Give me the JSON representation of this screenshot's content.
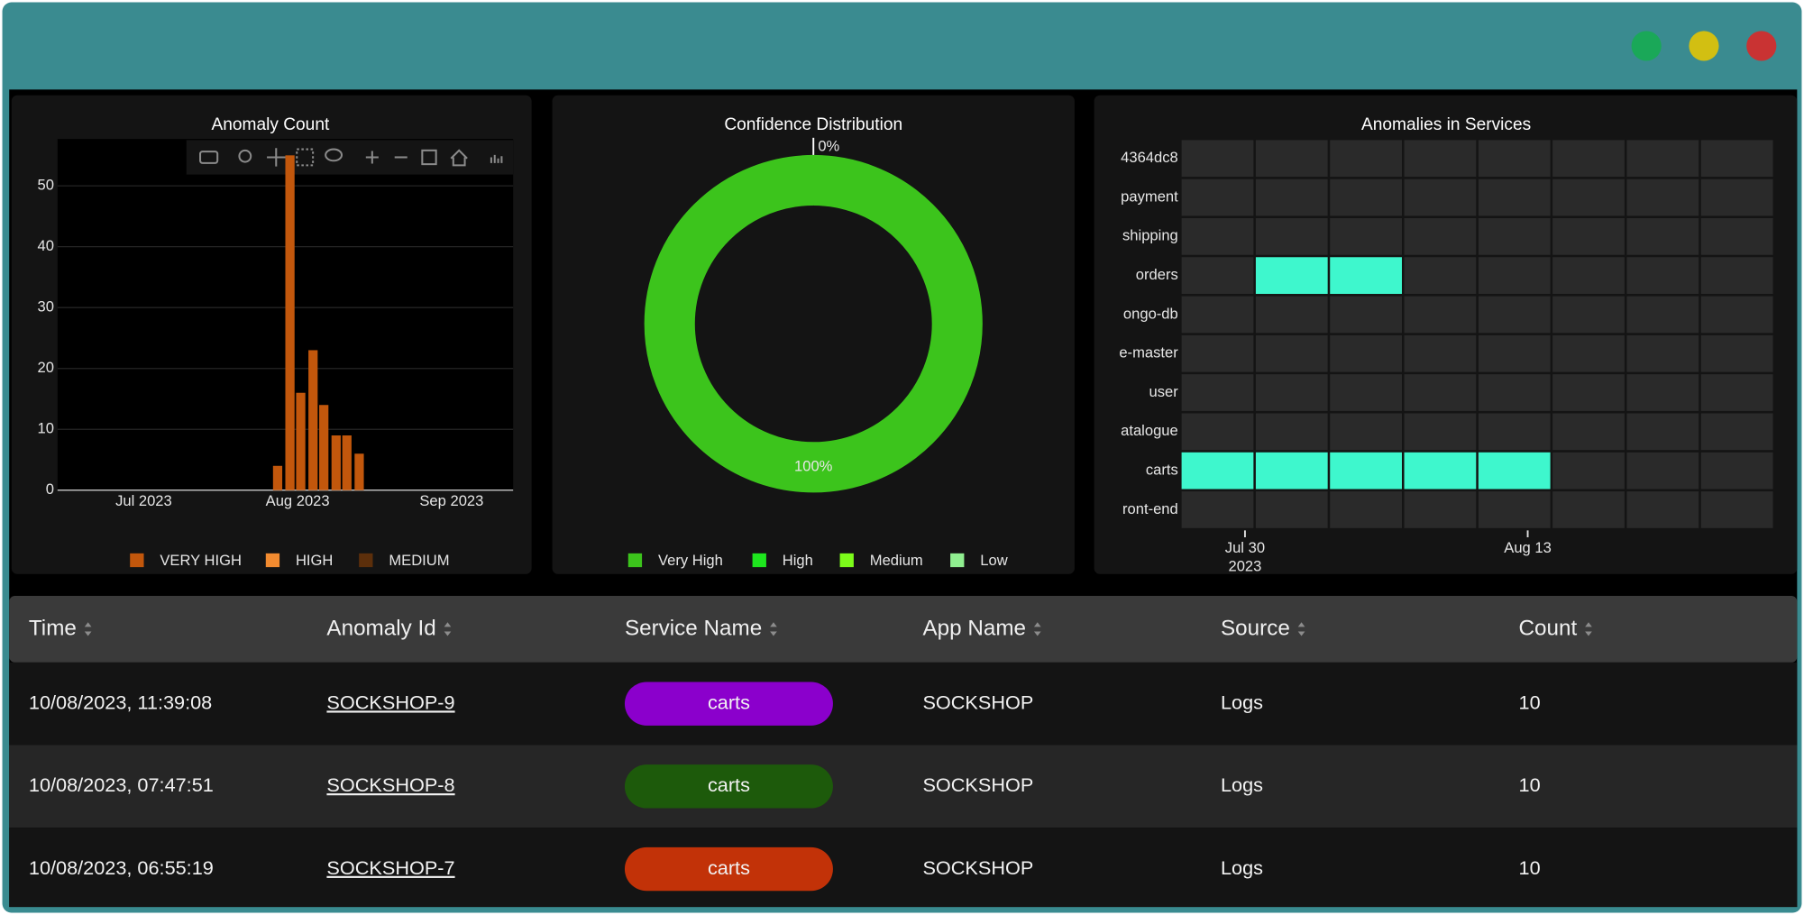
{
  "chart_data": [
    {
      "type": "bar",
      "title": "Anomaly Count",
      "x": [
        0.87,
        0.95,
        1.02,
        1.1,
        1.17,
        1.25,
        1.32,
        1.4
      ],
      "bar_width": 0.06,
      "series": [
        {
          "name": "VERY HIGH",
          "color": "#c2570c",
          "values": [
            4,
            55,
            16,
            23,
            14,
            9,
            9,
            6
          ]
        },
        {
          "name": "HIGH",
          "color": "#f28b30",
          "values": [
            null,
            null,
            null,
            null,
            null,
            null,
            null,
            null
          ]
        },
        {
          "name": "MEDIUM",
          "color": "#5c2f0b",
          "values": [
            null,
            null,
            null,
            null,
            null,
            null,
            null,
            null
          ]
        }
      ],
      "xlim": [
        -0.56,
        2.4
      ],
      "xticks": [
        {
          "value": 0,
          "label": "Jul 2023"
        },
        {
          "value": 1,
          "label": "Aug 2023"
        },
        {
          "value": 2,
          "label": "Sep 2023"
        }
      ],
      "ylim": [
        0,
        57.7
      ],
      "yticks": [
        0,
        10,
        20,
        30,
        40,
        50
      ],
      "grid": true,
      "legend": "bottom"
    },
    {
      "type": "pie",
      "title": "Confidence Distribution",
      "hole": true,
      "categories": [
        "Very High",
        "High",
        "Medium",
        "Low"
      ],
      "values": [
        100,
        0,
        0,
        0
      ],
      "value_labels": [
        "100%",
        "0%",
        null,
        null
      ],
      "colors": [
        "#3cc41c",
        "#1ee61e",
        "#7cfc1a",
        "#90ee90"
      ],
      "legend": "bottom"
    },
    {
      "type": "heatmap",
      "title": "Anomalies in Services",
      "y": [
        "4364dc8",
        "payment",
        "shipping",
        "orders",
        "ongo-db",
        "e-master",
        "user",
        "atalogue",
        "carts",
        "ront-end"
      ],
      "x": [
        0,
        1,
        2,
        3,
        4,
        5,
        6,
        7
      ],
      "xlim": [
        0,
        8
      ],
      "xticks": [
        {
          "value": 0.87,
          "label": "Jul 30",
          "sublabel": "2023"
        },
        {
          "value": 4.68,
          "label": "Aug 13"
        }
      ],
      "z": [
        [
          0,
          0,
          0,
          0,
          0,
          0,
          0,
          0
        ],
        [
          0,
          0,
          0,
          0,
          0,
          0,
          0,
          0
        ],
        [
          0,
          0,
          0,
          0,
          0,
          0,
          0,
          0
        ],
        [
          0,
          1,
          1,
          0,
          0,
          0,
          0,
          0
        ],
        [
          0,
          0,
          0,
          0,
          0,
          0,
          0,
          0
        ],
        [
          0,
          0,
          0,
          0,
          0,
          0,
          0,
          0
        ],
        [
          0,
          0,
          0,
          0,
          0,
          0,
          0,
          0
        ],
        [
          0,
          0,
          0,
          0,
          0,
          0,
          0,
          0
        ],
        [
          1,
          1,
          1,
          1,
          1,
          0,
          0,
          0
        ],
        [
          0,
          0,
          0,
          0,
          0,
          0,
          0,
          0
        ]
      ],
      "colorscale": [
        "#2a2a2a",
        "#3ef7cd"
      ]
    }
  ],
  "table": {
    "columns": [
      "Time",
      "Anomaly Id",
      "Service Name",
      "App Name",
      "Source",
      "Count"
    ],
    "rows": [
      [
        "10/08/2023, 11:39:08",
        "SOCKSHOP-9",
        "carts",
        "SOCKSHOP",
        "Logs",
        "10"
      ],
      [
        "10/08/2023, 07:47:51",
        "SOCKSHOP-8",
        "carts",
        "SOCKSHOP",
        "Logs",
        "10"
      ],
      [
        "10/08/2023, 06:55:19",
        "SOCKSHOP-7",
        "carts",
        "SOCKSHOP",
        "Logs",
        "10"
      ]
    ],
    "pill_colors": [
      "#8b00cc",
      "#1d5a0b",
      "#c23208"
    ]
  }
}
